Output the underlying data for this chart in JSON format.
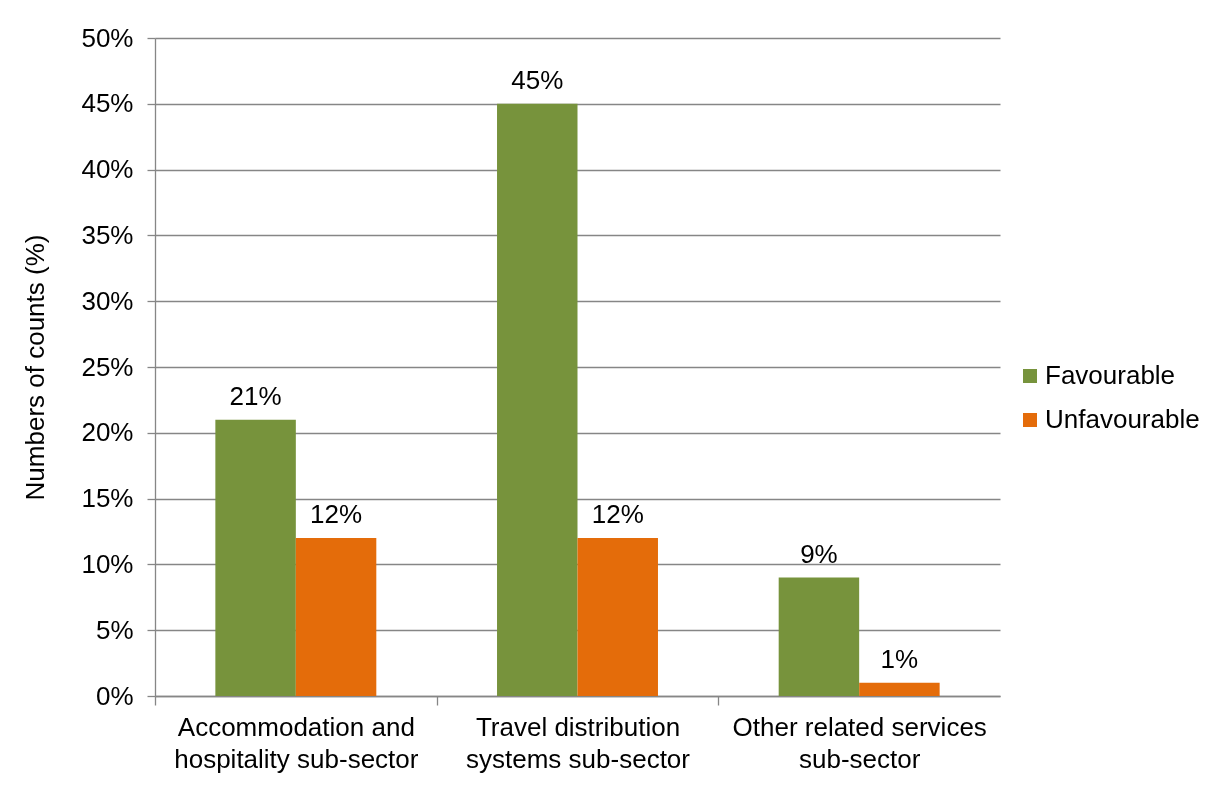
{
  "chart_data": {
    "type": "bar",
    "categories": [
      "Accommodation and hospitality sub-sector",
      "Travel distribution systems sub-sector",
      "Other related services sub-sector"
    ],
    "series": [
      {
        "name": "Favourable",
        "color": "#77933c",
        "values": [
          21,
          45,
          9
        ],
        "value_labels": [
          "21%",
          "45%",
          "9%"
        ]
      },
      {
        "name": "Unfavourable",
        "color": "#e46c0a",
        "values": [
          12,
          12,
          1
        ],
        "value_labels": [
          "12%",
          "12%",
          "1%"
        ]
      }
    ],
    "ylabel": "Numbers of counts (%)",
    "ylim": [
      0,
      50
    ],
    "yticks": [
      {
        "value": 0,
        "label": "0%"
      },
      {
        "value": 5,
        "label": "5%"
      },
      {
        "value": 10,
        "label": "10%"
      },
      {
        "value": 15,
        "label": "15%"
      },
      {
        "value": 20,
        "label": "20%"
      },
      {
        "value": 25,
        "label": "25%"
      },
      {
        "value": 30,
        "label": "30%"
      },
      {
        "value": 35,
        "label": "35%"
      },
      {
        "value": 40,
        "label": "40%"
      },
      {
        "value": 45,
        "label": "45%"
      },
      {
        "value": 50,
        "label": "50%"
      }
    ],
    "grid": "y",
    "legend": "right"
  }
}
